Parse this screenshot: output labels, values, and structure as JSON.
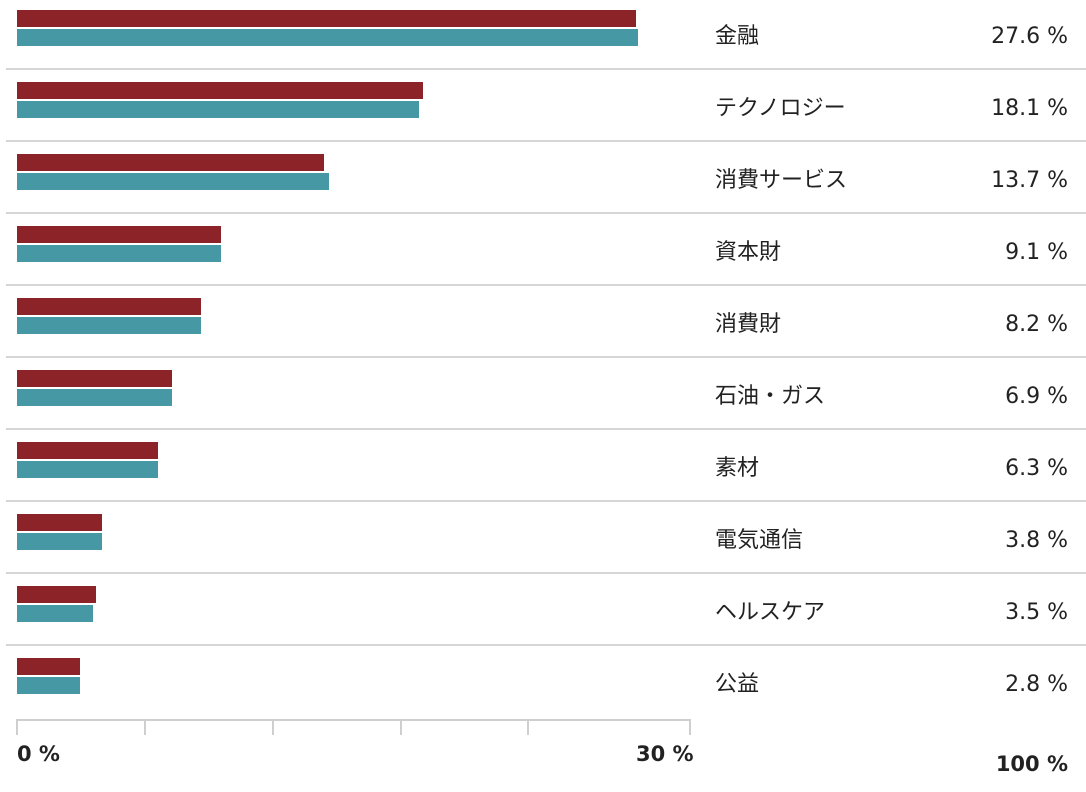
{
  "chart_data": {
    "type": "bar",
    "orientation": "horizontal",
    "categories": [
      "金融",
      "テクノロジー",
      "消費サービス",
      "資本財",
      "消費財",
      "石油・ガス",
      "素材",
      "電気通信",
      "ヘルスケア",
      "公益"
    ],
    "value_labels": [
      "27.6 %",
      "18.1 %",
      "13.7 %",
      "9.1 %",
      "8.2 %",
      "6.9 %",
      "6.3 %",
      "3.8 %",
      "3.5 %",
      "2.8 %"
    ],
    "series": [
      {
        "color": "#8b2328",
        "values": [
          27.6,
          18.1,
          13.7,
          9.1,
          8.2,
          6.9,
          6.3,
          3.8,
          3.5,
          2.8
        ]
      },
      {
        "color": "#4598a4",
        "values": [
          27.7,
          17.9,
          13.9,
          9.1,
          8.2,
          6.9,
          6.3,
          3.8,
          3.4,
          2.8
        ]
      }
    ],
    "xlim": [
      0,
      30
    ],
    "x_tick_labels": [
      "0 %",
      "30 %"
    ],
    "x_ticks": [
      0,
      5.7,
      11.4,
      17.1,
      22.8,
      30
    ],
    "total_label": "100 %",
    "grid": false
  }
}
